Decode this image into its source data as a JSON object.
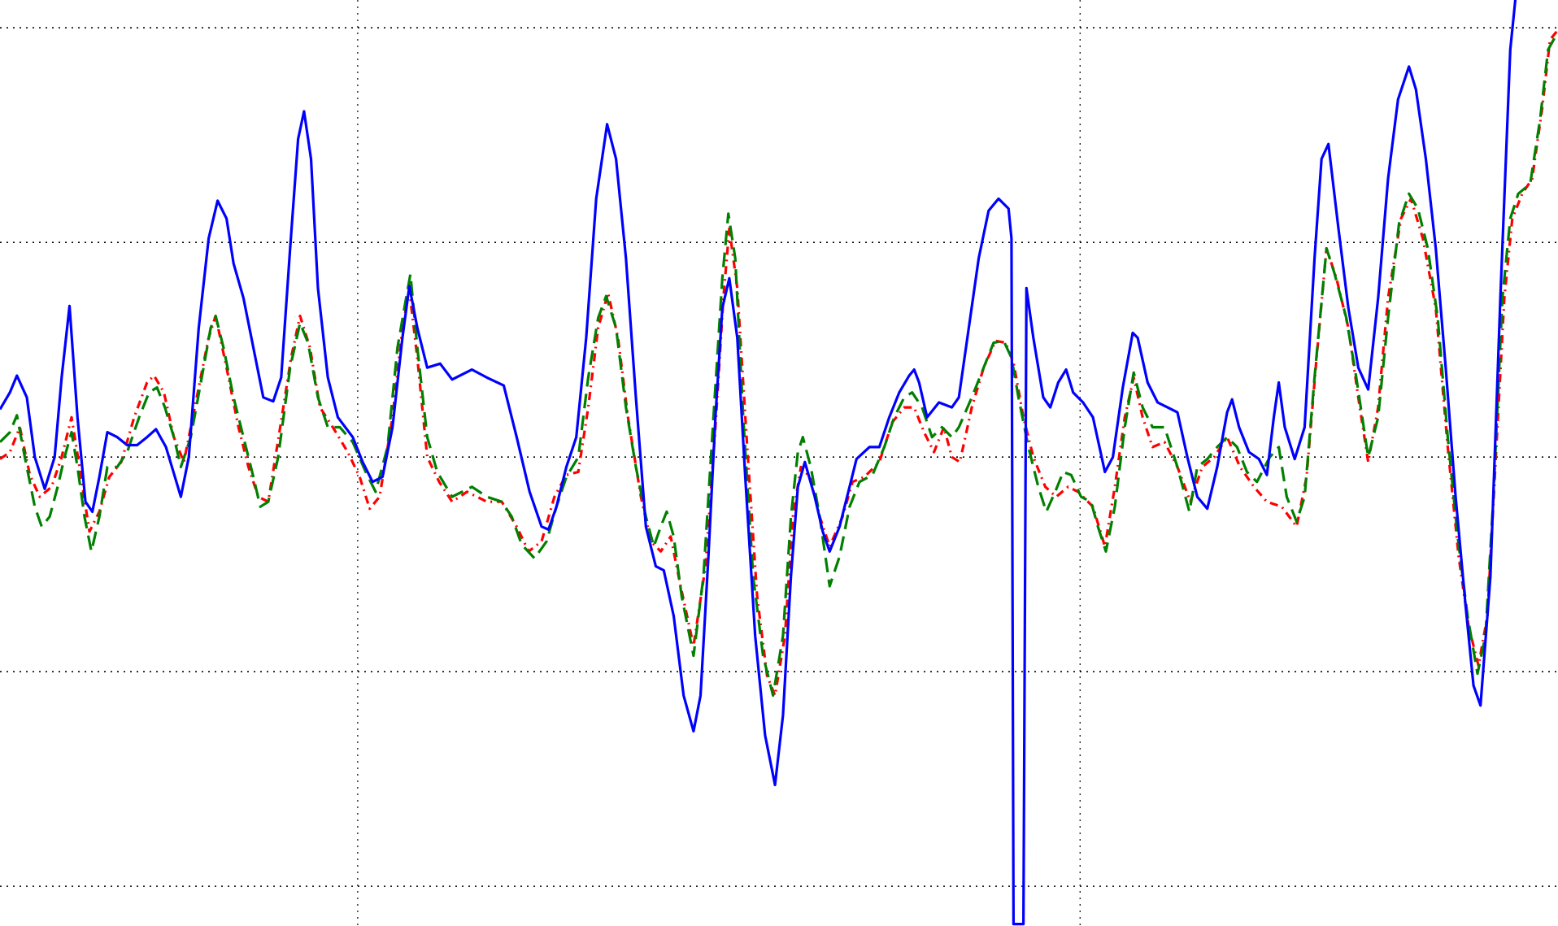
{
  "chart_data": {
    "type": "line",
    "grid": true,
    "grid_style": "dotted",
    "xlim": [
      0,
      1568
    ],
    "xticks": [
      360,
      1087
    ],
    "ylim": [
      -472,
      460
    ],
    "yticks": [
      432,
      216,
      0,
      -216,
      -432
    ],
    "series": [
      {
        "color": "#0000ff",
        "line_style": "solid",
        "x": [
          0,
          10,
          17,
          27,
          35,
          45,
          55,
          62,
          70,
          78,
          86,
          93,
          100,
          108,
          118,
          128,
          138,
          148,
          157,
          167,
          176,
          182,
          190,
          200,
          210,
          219,
          228,
          235,
          245,
          255,
          265,
          275,
          283,
          292,
          300,
          306,
          313,
          320,
          330,
          340,
          355,
          365,
          375,
          385,
          395,
          405,
          412,
          420,
          430,
          443,
          455,
          465,
          475,
          490,
          507,
          520,
          533,
          545,
          552,
          560,
          570,
          580,
          590,
          600,
          611,
          620,
          630,
          640,
          650,
          660,
          668,
          678,
          688,
          698,
          705,
          713,
          720,
          727,
          734,
          742,
          750,
          760,
          770,
          780,
          788,
          796,
          803,
          810,
          820,
          828,
          835,
          845,
          855,
          862,
          875,
          885,
          895,
          905,
          915,
          920,
          925,
          933,
          945,
          958,
          965,
          975,
          985,
          995,
          1005,
          1015,
          1018,
          1020,
          1025,
          1030,
          1033,
          1040,
          1050,
          1057,
          1065,
          1073,
          1080,
          1090,
          1100,
          1112,
          1120,
          1130,
          1140,
          1145,
          1155,
          1165,
          1175,
          1185,
          1195,
          1205,
          1215,
          1225,
          1235,
          1240,
          1247,
          1257,
          1267,
          1275,
          1282,
          1287,
          1293,
          1303,
          1313,
          1323,
          1330,
          1337,
          1347,
          1357,
          1367,
          1377,
          1387,
          1397,
          1407,
          1418,
          1425,
          1435,
          1445,
          1455,
          1465,
          1475,
          1483,
          1490,
          1500,
          1510,
          1520,
          1525,
          1530
        ],
        "values": [
          48,
          65,
          82,
          60,
          0,
          -32,
          0,
          80,
          152,
          40,
          -45,
          -55,
          -20,
          25,
          20,
          12,
          12,
          20,
          28,
          10,
          -20,
          -40,
          0,
          130,
          220,
          258,
          240,
          195,
          160,
          110,
          60,
          56,
          80,
          210,
          320,
          348,
          300,
          170,
          80,
          40,
          20,
          -5,
          -25,
          -20,
          30,
          120,
          172,
          130,
          90,
          94,
          78,
          83,
          88,
          80,
          72,
          20,
          -35,
          -70,
          -73,
          -50,
          -10,
          20,
          120,
          260,
          335,
          300,
          200,
          60,
          -70,
          -110,
          -114,
          -160,
          -240,
          -276,
          -240,
          -100,
          40,
          150,
          180,
          120,
          -20,
          -180,
          -280,
          -330,
          -260,
          -120,
          -30,
          -5,
          -40,
          -75,
          -95,
          -70,
          -30,
          -2,
          10,
          10,
          40,
          65,
          82,
          88,
          75,
          40,
          55,
          50,
          60,
          130,
          200,
          248,
          260,
          250,
          220,
          -470,
          -470,
          -470,
          170,
          120,
          60,
          50,
          75,
          88,
          65,
          55,
          40,
          -15,
          0,
          70,
          125,
          120,
          75,
          55,
          50,
          45,
          0,
          -40,
          -52,
          -10,
          45,
          58,
          30,
          5,
          -2,
          -18,
          40,
          75,
          30,
          -2,
          30,
          200,
          300,
          315,
          230,
          150,
          90,
          68,
          160,
          280,
          360,
          393,
          370,
          300,
          210,
          90,
          -40,
          -150,
          -230,
          -250,
          -120,
          160,
          410,
          460,
          500
        ]
      },
      {
        "color": "#008000",
        "line_style": "dashed",
        "x": [
          0,
          10,
          17,
          25,
          35,
          42,
          50,
          58,
          65,
          72,
          78,
          85,
          92,
          100,
          108,
          118,
          128,
          140,
          150,
          158,
          166,
          175,
          182,
          192,
          203,
          212,
          217,
          225,
          235,
          245,
          255,
          262,
          270,
          280,
          292,
          302,
          310,
          320,
          330,
          342,
          355,
          368,
          378,
          390,
          400,
          407,
          413,
          420,
          430,
          440,
          455,
          465,
          475,
          490,
          505,
          515,
          525,
          538,
          550,
          560,
          570,
          582,
          592,
          602,
          610,
          620,
          630,
          640,
          650,
          658,
          665,
          671,
          678,
          686,
          698,
          708,
          718,
          727,
          733,
          740,
          748,
          758,
          768,
          778,
          788,
          796,
          803,
          808,
          816,
          825,
          835,
          845,
          855,
          865,
          878,
          890,
          900,
          910,
          918,
          928,
          938,
          948,
          958,
          965,
          978,
          990,
          1000,
          1010,
          1018,
          1025,
          1035,
          1045,
          1053,
          1062,
          1070,
          1078,
          1088,
          1098,
          1105,
          1113,
          1122,
          1132,
          1141,
          1150,
          1160,
          1172,
          1185,
          1197,
          1205,
          1215,
          1225,
          1235,
          1245,
          1255,
          1265,
          1278,
          1287,
          1295,
          1305,
          1313,
          1323,
          1335,
          1343,
          1355,
          1365,
          1377,
          1387,
          1397,
          1408,
          1418,
          1427,
          1437,
          1447,
          1457,
          1467,
          1477,
          1487,
          1495,
          1503,
          1512,
          1520,
          1528,
          1540,
          1550,
          1558,
          1568
        ],
        "values": [
          15,
          25,
          42,
          0,
          -50,
          -70,
          -60,
          -30,
          0,
          25,
          -10,
          -60,
          -95,
          -60,
          -10,
          -10,
          5,
          40,
          65,
          70,
          50,
          20,
          -10,
          20,
          80,
          130,
          142,
          110,
          60,
          20,
          -20,
          -50,
          -45,
          0,
          90,
          135,
          115,
          60,
          30,
          30,
          15,
          -15,
          -35,
          10,
          110,
          150,
          184,
          110,
          20,
          -15,
          -40,
          -35,
          -30,
          -40,
          -45,
          -60,
          -88,
          -102,
          -85,
          -50,
          -20,
          0,
          80,
          140,
          162,
          130,
          50,
          -10,
          -60,
          -90,
          -70,
          -55,
          -80,
          -140,
          -200,
          -120,
          40,
          180,
          245,
          200,
          40,
          -120,
          -200,
          -240,
          -180,
          -60,
          5,
          20,
          -10,
          -60,
          -130,
          -100,
          -50,
          -25,
          -18,
          10,
          40,
          60,
          65,
          50,
          20,
          30,
          20,
          30,
          60,
          90,
          115,
          117,
          100,
          60,
          10,
          -30,
          -55,
          -35,
          -15,
          -18,
          -40,
          -45,
          -70,
          -95,
          -50,
          30,
          85,
          50,
          30,
          30,
          -10,
          -55,
          -10,
          -2,
          10,
          20,
          10,
          -15,
          -25,
          0,
          10,
          -40,
          -65,
          -40,
          80,
          210,
          185,
          140,
          80,
          0,
          40,
          140,
          235,
          265,
          250,
          210,
          140,
          20,
          -80,
          -160,
          -218,
          -180,
          -40,
          160,
          240,
          265,
          275,
          340,
          410,
          428
        ]
      },
      {
        "color": "#ff0000",
        "line_style": "dashdot",
        "x": [
          0,
          10,
          20,
          30,
          40,
          52,
          62,
          72,
          80,
          90,
          100,
          110,
          122,
          135,
          148,
          155,
          165,
          175,
          185,
          200,
          210,
          217,
          228,
          240,
          250,
          260,
          270,
          282,
          293,
          302,
          312,
          322,
          335,
          350,
          362,
          372,
          382,
          395,
          405,
          412,
          420,
          430,
          442,
          455,
          470,
          490,
          505,
          520,
          532,
          545,
          558,
          570,
          582,
          592,
          602,
          612,
          622,
          632,
          645,
          655,
          665,
          675,
          685,
          698,
          710,
          720,
          728,
          734,
          742,
          752,
          762,
          772,
          780,
          790,
          798,
          806,
          815,
          825,
          835,
          848,
          858,
          870,
          885,
          898,
          910,
          920,
          930,
          940,
          950,
          958,
          966,
          978,
          990,
          1002,
          1012,
          1020,
          1030,
          1040,
          1052,
          1063,
          1075,
          1085,
          1100,
          1112,
          1122,
          1132,
          1141,
          1150,
          1160,
          1172,
          1185,
          1198,
          1210,
          1222,
          1235,
          1248,
          1262,
          1275,
          1290,
          1305,
          1315,
          1325,
          1335,
          1345,
          1357,
          1367,
          1377,
          1387,
          1397,
          1410,
          1420,
          1432,
          1445,
          1457,
          1468,
          1478,
          1488,
          1497,
          1506,
          1514,
          1522,
          1532,
          1542,
          1552,
          1560,
          1568
        ],
        "values": [
          -2,
          5,
          30,
          -18,
          -40,
          -30,
          0,
          40,
          -10,
          -75,
          -55,
          -20,
          -5,
          40,
          75,
          82,
          65,
          20,
          -5,
          70,
          120,
          142,
          90,
          30,
          -10,
          -40,
          -45,
          30,
          100,
          142,
          110,
          50,
          30,
          5,
          -20,
          -52,
          -40,
          40,
          130,
          168,
          100,
          0,
          -25,
          -45,
          -35,
          -45,
          -45,
          -70,
          -95,
          -85,
          -40,
          -18,
          -15,
          50,
          130,
          165,
          120,
          40,
          -40,
          -85,
          -95,
          -80,
          -130,
          -190,
          -110,
          30,
          160,
          230,
          170,
          10,
          -140,
          -220,
          -240,
          -180,
          -60,
          -10,
          -20,
          -60,
          -90,
          -60,
          -25,
          -20,
          -5,
          35,
          50,
          50,
          25,
          5,
          30,
          0,
          -5,
          50,
          90,
          117,
          115,
          95,
          40,
          0,
          -30,
          -40,
          -30,
          -35,
          -50,
          -90,
          -30,
          40,
          80,
          40,
          10,
          15,
          -10,
          -45,
          -10,
          0,
          20,
          -10,
          -30,
          -45,
          -50,
          -70,
          -20,
          100,
          210,
          180,
          130,
          60,
          -5,
          50,
          160,
          240,
          260,
          220,
          150,
          10,
          -100,
          -170,
          -210,
          -160,
          10,
          160,
          240,
          265,
          280,
          350,
          420,
          430
        ]
      }
    ]
  }
}
